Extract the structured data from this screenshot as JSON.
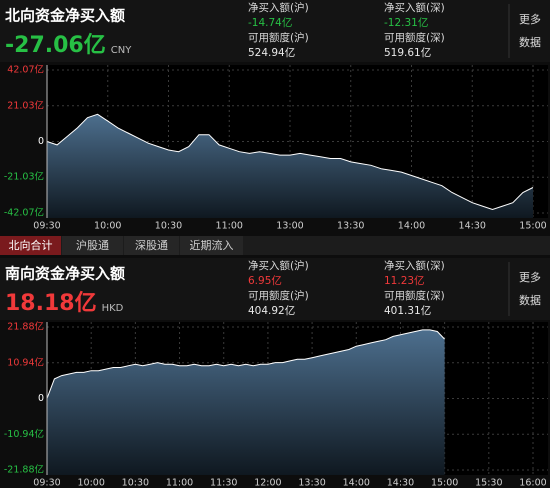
{
  "chart_data": [
    {
      "type": "line",
      "title": "北向资金净买入额",
      "headline": "-27.06亿",
      "currency": "CNY",
      "stats": [
        {
          "label": "净买入额(沪)",
          "value": "-14.74亿"
        },
        {
          "label": "净买入额(深)",
          "value": "-12.31亿"
        },
        {
          "label": "可用额度(沪)",
          "value": "524.94亿"
        },
        {
          "label": "可用额度(深)",
          "value": "519.61亿"
        }
      ],
      "x": [
        "09:30",
        "09:35",
        "09:40",
        "09:45",
        "09:50",
        "09:55",
        "10:00",
        "10:05",
        "10:10",
        "10:15",
        "10:20",
        "10:25",
        "10:30",
        "10:35",
        "10:40",
        "10:45",
        "10:50",
        "10:55",
        "11:00",
        "11:05",
        "11:10",
        "11:15",
        "11:20",
        "11:25",
        "13:00",
        "13:05",
        "13:10",
        "13:15",
        "13:20",
        "13:25",
        "13:30",
        "13:35",
        "13:40",
        "13:45",
        "13:50",
        "13:55",
        "14:00",
        "14:05",
        "14:10",
        "14:15",
        "14:20",
        "14:25",
        "14:30",
        "14:35",
        "14:40",
        "14:45",
        "14:50",
        "14:55",
        "15:00"
      ],
      "values": [
        0,
        -2,
        3,
        8,
        14,
        16,
        12,
        8,
        5,
        2,
        -1,
        -3,
        -5,
        -6,
        -3,
        4,
        4,
        -2,
        -4,
        -6,
        -7,
        -6,
        -7,
        -8,
        -8,
        -7,
        -8,
        -9,
        -10,
        -10,
        -12,
        -13,
        -14,
        -16,
        -17,
        -18,
        -20,
        -22,
        -24,
        -26,
        -30,
        -33,
        -36,
        -38,
        -40,
        -38,
        -36,
        -30,
        -27.06
      ],
      "xticks": [
        "09:30",
        "10:00",
        "10:30",
        "11:00",
        "13:00",
        "13:30",
        "14:00",
        "14:30",
        "15:00"
      ],
      "ylim": [
        -42.07,
        42.07
      ],
      "yticks": [
        {
          "value": 42.07,
          "label": "42.07亿"
        },
        {
          "value": 21.03,
          "label": "21.03亿"
        },
        0,
        {
          "value": -21.03,
          "label": "-21.03亿"
        },
        {
          "value": -42.07,
          "label": "-42.07亿"
        }
      ],
      "color": "#ffffff",
      "grid": true
    },
    {
      "type": "line",
      "title": "南向资金净买入额",
      "headline": "18.18亿",
      "currency": "HKD",
      "stats": [
        {
          "label": "净买入额(沪)",
          "value": "6.95亿"
        },
        {
          "label": "净买入额(深)",
          "value": "11.23亿"
        },
        {
          "label": "可用额度(沪)",
          "value": "404.92亿"
        },
        {
          "label": "可用额度(深)",
          "value": "401.31亿"
        }
      ],
      "x": [
        "09:30",
        "09:35",
        "09:40",
        "09:45",
        "09:50",
        "09:55",
        "10:00",
        "10:05",
        "10:10",
        "10:15",
        "10:20",
        "10:25",
        "10:30",
        "10:35",
        "10:40",
        "10:45",
        "10:50",
        "10:55",
        "11:00",
        "11:05",
        "11:10",
        "11:15",
        "11:20",
        "11:25",
        "11:30",
        "11:35",
        "11:40",
        "11:45",
        "11:50",
        "11:55",
        "12:00",
        "13:05",
        "13:10",
        "13:15",
        "13:20",
        "13:25",
        "13:30",
        "13:35",
        "13:40",
        "13:45",
        "13:50",
        "13:55",
        "14:00",
        "14:05",
        "14:10",
        "14:15",
        "14:20",
        "14:25",
        "14:30",
        "14:35",
        "14:40",
        "14:45",
        "14:50",
        "14:55",
        "15:00",
        "15:05",
        "15:10",
        "15:15",
        "15:20",
        "15:25",
        "15:30",
        "15:35",
        "15:40",
        "15:45",
        "15:50",
        "15:55",
        "16:00"
      ],
      "values": [
        0,
        6,
        7,
        7.5,
        8,
        8,
        8.5,
        8.5,
        9,
        9.5,
        9.5,
        10,
        10.5,
        10,
        10.5,
        11,
        10.5,
        10.5,
        10,
        10,
        10.5,
        10,
        10,
        10.5,
        10,
        10.5,
        10,
        10.5,
        10,
        10.5,
        10.5,
        11,
        11,
        11.5,
        12,
        12,
        12.5,
        13,
        13.5,
        14,
        14.5,
        15,
        16,
        16.5,
        17,
        17.5,
        18,
        19,
        19.5,
        20,
        20.5,
        21,
        21,
        20.5,
        18.18,
        null,
        null,
        null,
        null,
        null,
        null,
        null,
        null,
        null,
        null,
        null,
        null
      ],
      "xticks": [
        "09:30",
        "10:00",
        "10:30",
        "11:00",
        "11:30",
        "12:00",
        "13:30",
        "14:00",
        "14:30",
        "15:00",
        "15:30",
        "16:00"
      ],
      "ylim": [
        -21.88,
        21.88
      ],
      "yticks": [
        {
          "value": 21.88,
          "label": "21.88亿"
        },
        {
          "value": 10.94,
          "label": "10.94亿"
        },
        0,
        {
          "value": -10.94,
          "label": "-10.94亿"
        },
        {
          "value": -21.88,
          "label": "-21.88亿"
        }
      ],
      "color": "#ffffff",
      "grid": true
    }
  ],
  "more": [
    "更多",
    "数据"
  ],
  "tabs": [
    "北向合计",
    "沪股通",
    "深股通",
    "近期流入"
  ]
}
